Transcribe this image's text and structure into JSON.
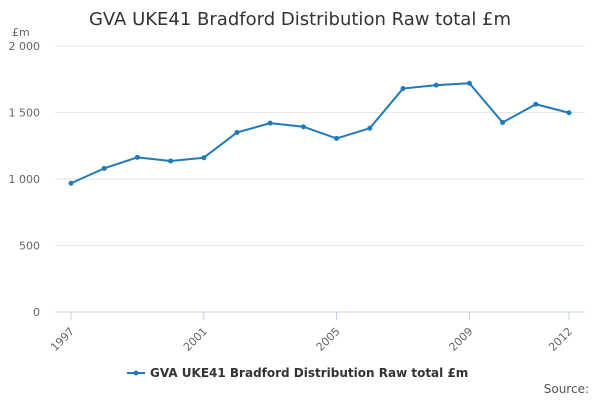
{
  "chart_data": {
    "type": "line",
    "title": "GVA UKE41 Bradford Distribution Raw total £m",
    "ylabel": "£m",
    "xlabel": "",
    "x": [
      1997,
      1998,
      1999,
      2000,
      2001,
      2002,
      2003,
      2004,
      2005,
      2006,
      2007,
      2008,
      2009,
      2010,
      2011,
      2012
    ],
    "x_tick_labels": [
      "1997",
      "2001",
      "2005",
      "2009",
      "2012"
    ],
    "y_ticks": [
      0,
      500,
      1000,
      1500,
      2000
    ],
    "y_tick_labels": [
      "0",
      "500",
      "1 000",
      "1 500",
      "2 000"
    ],
    "ylim": [
      0,
      2000
    ],
    "grid": true,
    "legend_position": "bottom",
    "series": [
      {
        "name": "GVA UKE41 Bradford Distribution Raw total £m",
        "color": "#1f7ab8",
        "values": [
          968,
          1080,
          1163,
          1135,
          1160,
          1350,
          1420,
          1393,
          1305,
          1382,
          1680,
          1706,
          1720,
          1425,
          1562,
          1498
        ]
      }
    ]
  },
  "source_label": "Source:"
}
